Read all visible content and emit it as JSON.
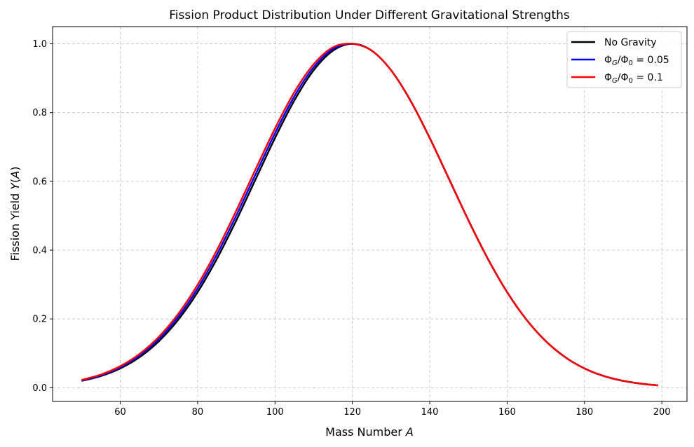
{
  "chart_data": {
    "type": "line",
    "title": "Fission Product Distribution Under Different Gravitational Strengths",
    "xlabel": "Mass Number A",
    "ylabel": "Fission Yield Y(A)",
    "xlim": [
      42.5,
      206.5
    ],
    "ylim": [
      -0.04,
      1.05
    ],
    "xticks": [
      60,
      80,
      100,
      120,
      140,
      160,
      180,
      200
    ],
    "xtick_labels": [
      "60",
      "80",
      "100",
      "120",
      "140",
      "160",
      "180",
      "200"
    ],
    "yticks": [
      0.0,
      0.2,
      0.4,
      0.6,
      0.8,
      1.0
    ],
    "ytick_labels": [
      "0.0",
      "0.2",
      "0.4",
      "0.6",
      "0.8",
      "1.0"
    ],
    "grid": true,
    "legend_position": "top-right",
    "x": [
      50,
      55,
      60,
      65,
      70,
      75,
      80,
      85,
      90,
      95,
      100,
      105,
      110,
      115,
      120,
      125,
      130,
      135,
      140,
      145,
      150,
      155,
      160,
      165,
      170,
      175,
      180,
      185,
      190,
      195,
      199
    ],
    "series": [
      {
        "name": "No Gravity",
        "label_main": "No Gravity",
        "color": "#000000",
        "values": [
          0.0198,
          0.034,
          0.0561,
          0.0889,
          0.1353,
          0.1979,
          0.278,
          0.3753,
          0.4868,
          0.6065,
          0.7261,
          0.8353,
          0.9231,
          0.9802,
          1.0,
          0.9802,
          0.9231,
          0.8353,
          0.7261,
          0.6065,
          0.4868,
          0.3753,
          0.278,
          0.1979,
          0.1353,
          0.0889,
          0.0561,
          0.034,
          0.0198,
          0.0111,
          0.0068
        ]
      },
      {
        "name": "ΦG/Φ0 = 0.05",
        "label_main": "Φ",
        "label_sub": "G",
        "label_mid": "/Φ",
        "label_sub2": "0",
        "label_end": " = 0.05",
        "color": "#0000ff",
        "values": [
          0.0211,
          0.0361,
          0.0593,
          0.0936,
          0.1418,
          0.2064,
          0.2887,
          0.3879,
          0.5009,
          0.6211,
          0.7399,
          0.8474,
          0.9318,
          0.9851,
          1.0,
          0.9802,
          0.9231,
          0.8353,
          0.7261,
          0.6065,
          0.4868,
          0.3753,
          0.278,
          0.1979,
          0.1353,
          0.0889,
          0.0561,
          0.034,
          0.0198,
          0.0111,
          0.0068
        ]
      },
      {
        "name": "ΦG/Φ0 = 0.1",
        "label_main": "Φ",
        "label_sub": "G",
        "label_mid": "/Φ",
        "label_sub2": "0",
        "label_end": " = 0.1",
        "color": "#ff0000",
        "values": [
          0.0225,
          0.0382,
          0.0626,
          0.0983,
          0.1483,
          0.215,
          0.2994,
          0.4005,
          0.515,
          0.6356,
          0.7537,
          0.8595,
          0.9406,
          0.99,
          1.0,
          0.9802,
          0.9231,
          0.8353,
          0.7261,
          0.6065,
          0.4868,
          0.3753,
          0.278,
          0.1979,
          0.1353,
          0.0889,
          0.0561,
          0.034,
          0.0198,
          0.0111,
          0.0068
        ]
      }
    ]
  }
}
